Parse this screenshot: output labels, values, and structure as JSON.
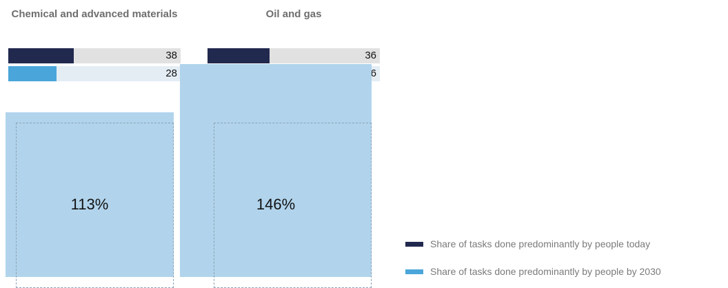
{
  "colors": {
    "today": "#22294f",
    "by2030": "#4aa6da",
    "track_today": "#e1e1e1",
    "track_2030": "#e4edf4",
    "box_fill": "#b1d4ec"
  },
  "chart_data": {
    "type": "bar",
    "categories": [
      "Chemical and advanced materials",
      "Oil and gas"
    ],
    "series": [
      {
        "name": "Share of tasks done predominantly by people today",
        "values": [
          38,
          36
        ]
      },
      {
        "name": "Share of tasks done predominantly by people by 2030",
        "values": [
          28,
          26
        ]
      }
    ],
    "bar_max": 100,
    "growth_labels": [
      "113%",
      "146%"
    ],
    "growth_values": [
      113,
      146
    ],
    "legend_position": "bottom-right"
  },
  "panels": [
    {
      "title": "Chemical and advanced materials",
      "today_value": "38",
      "by2030_value": "28",
      "growth_label": "113%"
    },
    {
      "title": "Oil and gas",
      "today_value": "36",
      "by2030_value": "26",
      "growth_label": "146%"
    }
  ],
  "legend": {
    "today_label": "Share of tasks done predominantly by people today",
    "by2030_label": "Share of tasks done predominantly by people by 2030"
  }
}
